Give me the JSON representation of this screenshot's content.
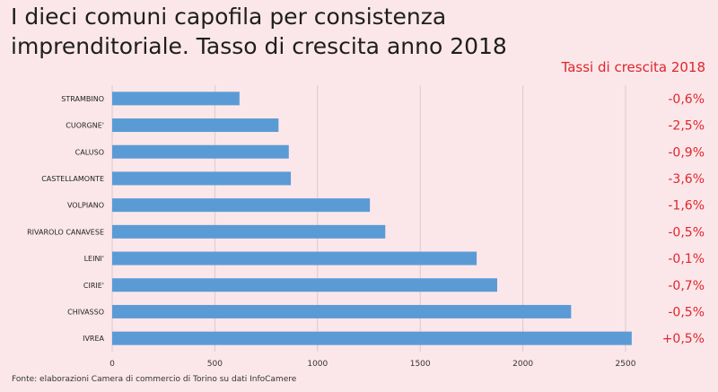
{
  "title_line1": "I dieci comuni capofila per consistenza",
  "title_line2": "imprenditoriale. Tasso di crescita anno 2018",
  "growth_header": "Tassi di crescita 2018",
  "source": "Fonte: elaborazioni Camera di commercio di Torino su dati InfoCamere",
  "colors": {
    "bar": "#5b9bd5",
    "growth": "#e0252b",
    "background": "#fbe7ea",
    "grid": "#d9c9cc"
  },
  "chart_data": {
    "type": "bar",
    "orientation": "horizontal",
    "title": "I dieci comuni capofila per consistenza imprenditoriale. Tasso di crescita anno 2018",
    "categories": [
      "STRAMBINO",
      "CUORGNE'",
      "CALUSO",
      "CASTELLAMONTE",
      "VOLPIANO",
      "RIVAROLO CANAVESE",
      "LEINI'",
      "CIRIE'",
      "CHIVASSO",
      "IVREA"
    ],
    "values": [
      620,
      810,
      860,
      870,
      1255,
      1330,
      1775,
      1875,
      2235,
      2530
    ],
    "growth_rates": [
      "-0,6%",
      "-2,5%",
      "-0,9%",
      "-3,6%",
      "-1,6%",
      "-0,5%",
      "-0,1%",
      "-0,7%",
      "-0,5%",
      "+0,5%"
    ],
    "xticks": [
      0,
      500,
      1000,
      1500,
      2000,
      2500
    ],
    "xlim": [
      0,
      2500
    ],
    "xlabel": "",
    "ylabel": "",
    "grid": true
  }
}
